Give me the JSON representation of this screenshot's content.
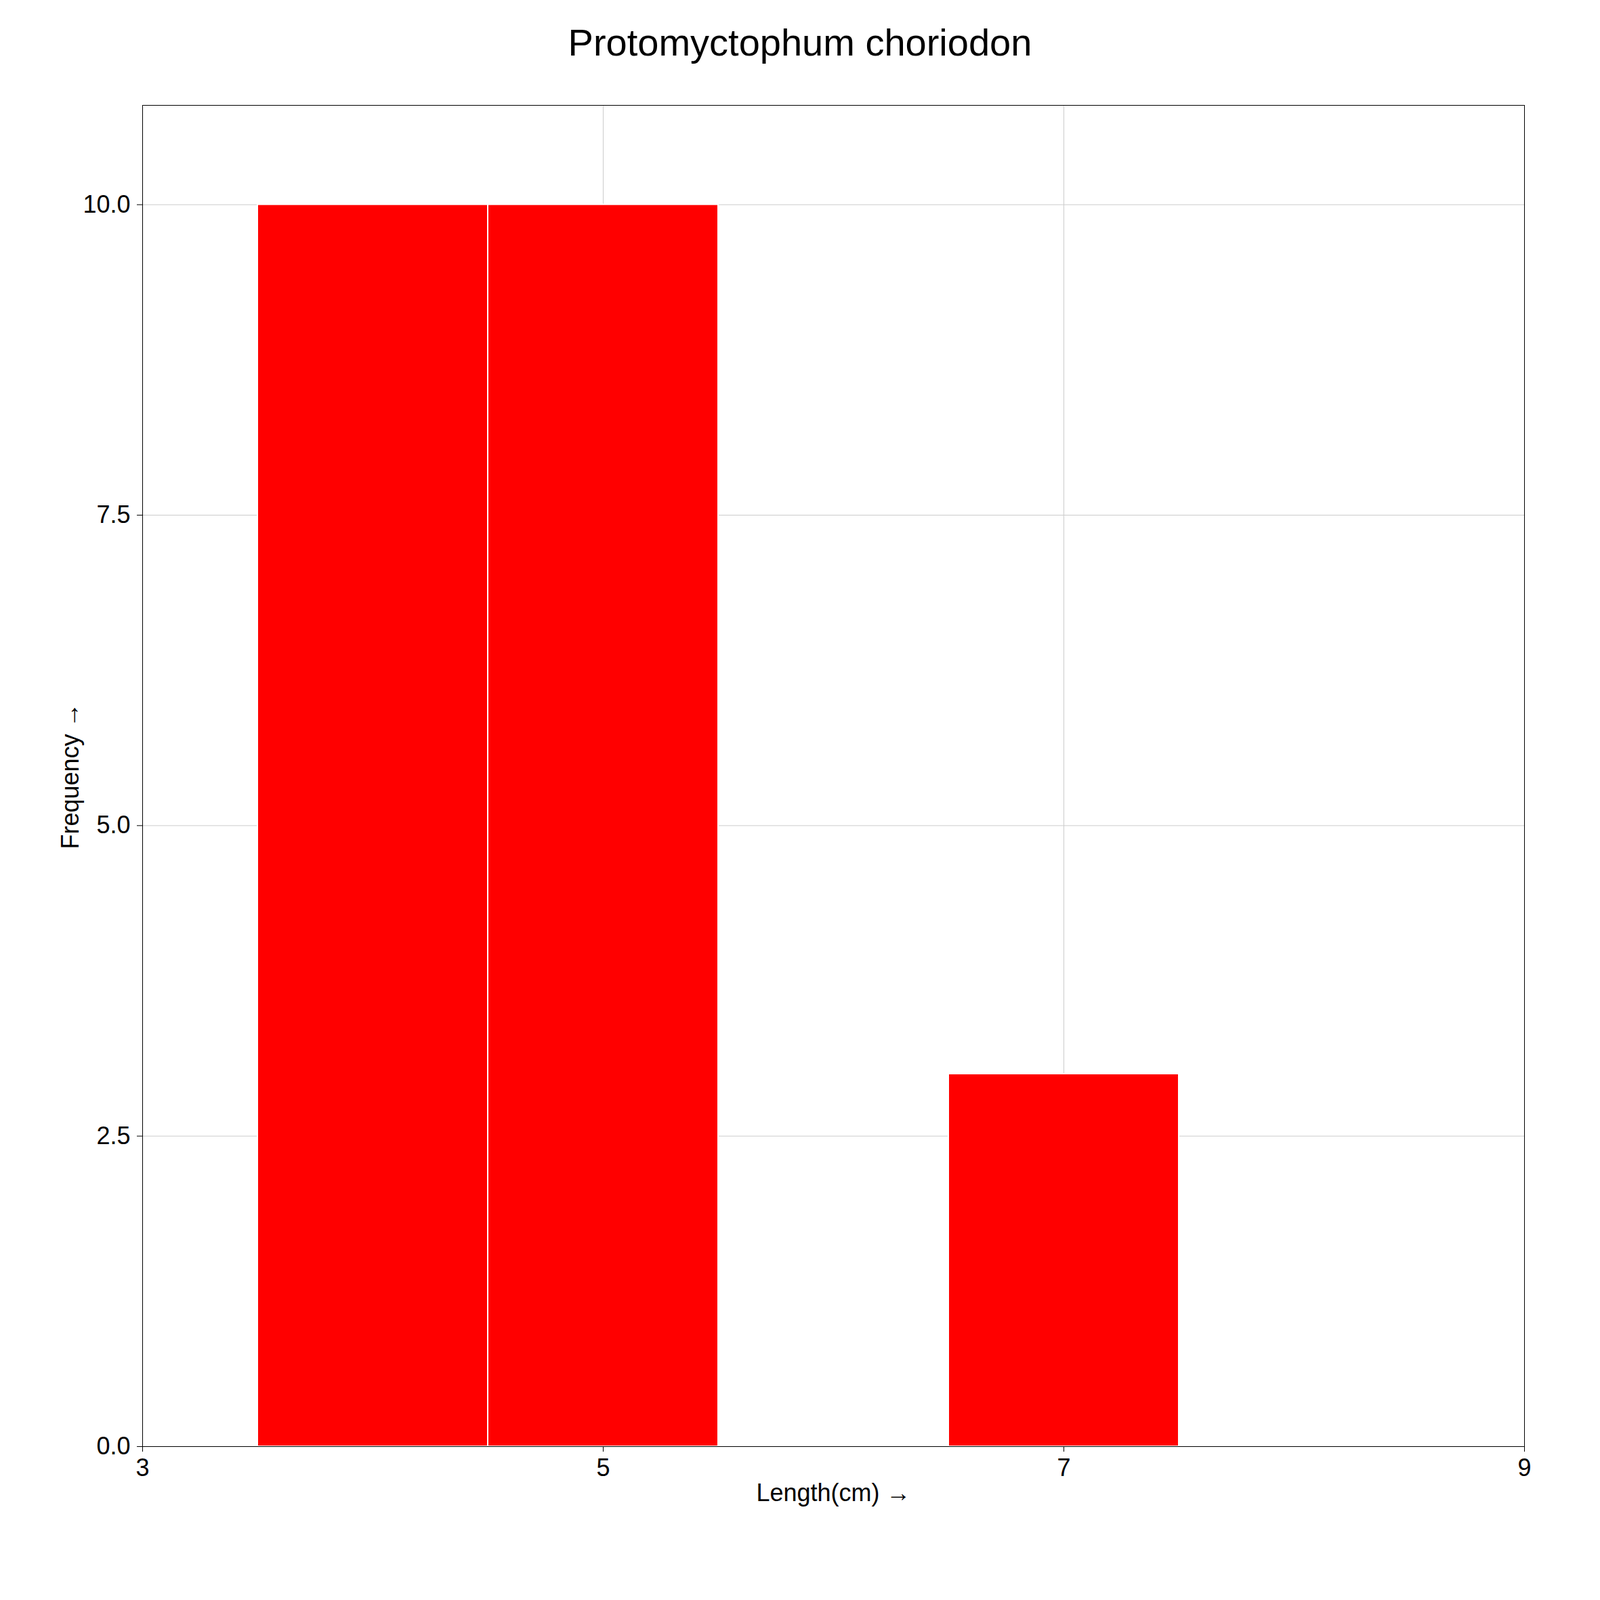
{
  "chart_data": {
    "type": "bar",
    "title": "Protomyctophum choriodon",
    "xlabel": "Length(cm)",
    "ylabel": "Frequency",
    "x": [
      4.0,
      5.0,
      7.0
    ],
    "values": [
      10,
      10,
      3
    ],
    "color": "#FF0000",
    "xlim": [
      3,
      9
    ],
    "xticks": [
      3,
      5,
      7,
      9
    ],
    "ylim": [
      0,
      10.8
    ],
    "yticks": [
      {
        "value": 0.0,
        "label": "0.0"
      },
      2.5,
      {
        "value": 5.0,
        "label": "5.0"
      },
      7.5,
      {
        "value": 10.0,
        "label": "10.0"
      }
    ],
    "grid": true
  }
}
